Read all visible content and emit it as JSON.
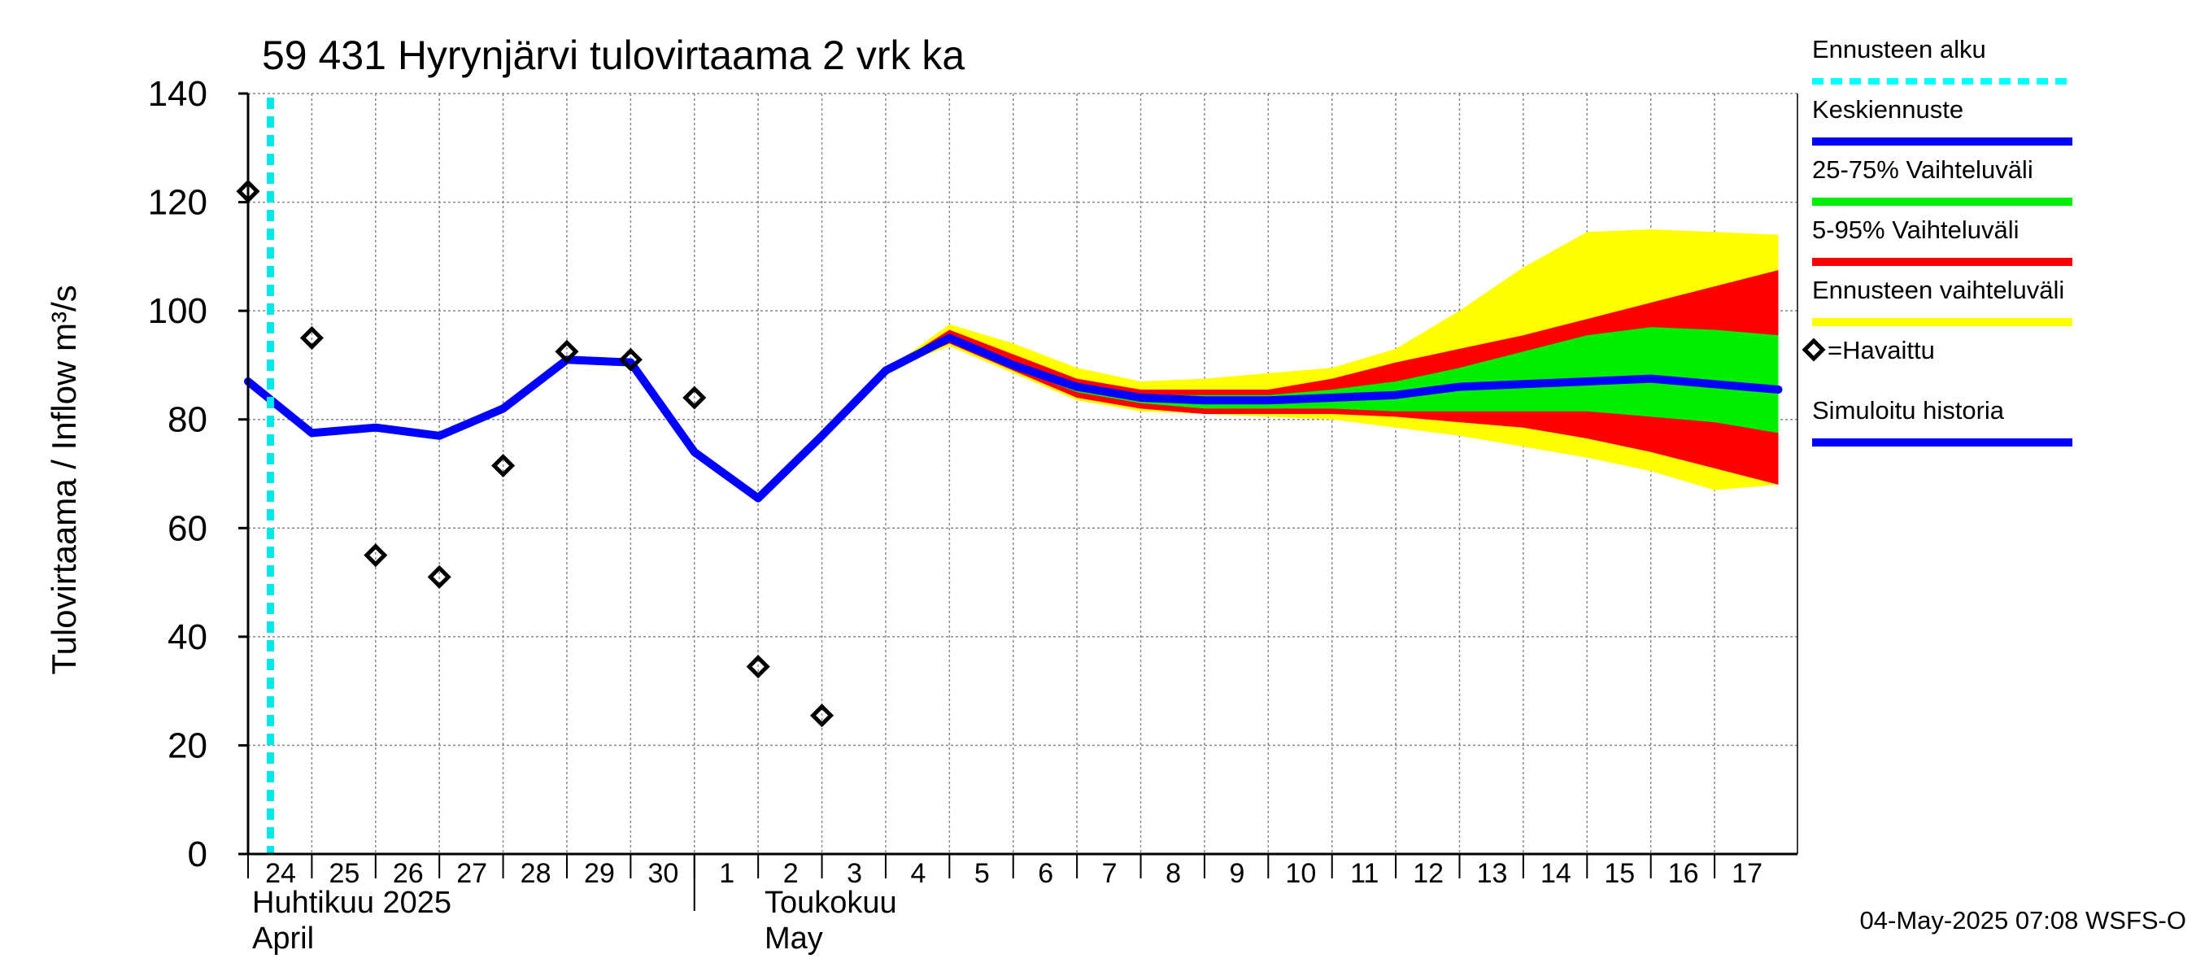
{
  "chart_data": {
    "type": "area",
    "title": "59 431 Hyrynjärvi tulovirtaama 2 vrk ka",
    "ylabel": "Tulovirtaama / Inflow    m³/s",
    "ylim": [
      0,
      140
    ],
    "y_ticks": [
      0,
      20,
      40,
      60,
      80,
      100,
      120,
      140
    ],
    "grid": true,
    "x_day_labels": [
      "24",
      "25",
      "26",
      "27",
      "28",
      "29",
      "30",
      "1",
      "2",
      "3",
      "4",
      "5",
      "6",
      "7",
      "8",
      "9",
      "10",
      "11",
      "12",
      "13",
      "14",
      "15",
      "16",
      "17"
    ],
    "month_labels": {
      "april_fi": "Huhtikuu  2025",
      "april_en": "April",
      "may_fi": "Toukokuu",
      "may_en": "May"
    },
    "forecast_start_x": 23.85,
    "series": [
      {
        "name": "Simuloitu historia",
        "color": "#0000ff",
        "x": [
          23.5,
          24.5,
          25.5,
          26.5,
          27.5,
          28.5,
          29.5,
          30.5,
          31.5,
          32.5,
          33.5
        ],
        "y": [
          87,
          77.5,
          78.5,
          77,
          82,
          91,
          90.5,
          74,
          65.5,
          77,
          89
        ]
      },
      {
        "name": "Keskiennuste",
        "color": "#0000ff",
        "x": [
          33.5,
          34.5,
          35.5,
          36.5,
          37.5,
          38.5,
          39.5,
          40.5,
          41.5,
          42.5,
          43.5,
          44.5,
          45.5,
          46.5,
          47.5
        ],
        "y": [
          89,
          95,
          90,
          86,
          84,
          83.5,
          83.5,
          84,
          84.5,
          86,
          86.5,
          87,
          87.5,
          86.5,
          85.5
        ]
      },
      {
        "name": "=Havaittu",
        "color": "#000000",
        "x": [
          23.5,
          24.5,
          25.5,
          26.5,
          27.5,
          28.5,
          29.5,
          30.5,
          31.5,
          32.5
        ],
        "y": [
          122,
          95,
          55,
          51,
          71.5,
          92.5,
          91,
          84,
          34.5,
          25.5
        ]
      }
    ],
    "bands": [
      {
        "name": "Ennusteen vaihteluväli",
        "color": "#ffff00",
        "x": [
          33.5,
          34.5,
          35.5,
          36.5,
          37.5,
          38.5,
          39.5,
          40.5,
          41.5,
          42.5,
          43.5,
          44.5,
          45.5,
          46.5,
          47.5
        ],
        "low": [
          89,
          93.5,
          88.5,
          83.5,
          81.5,
          81,
          80.5,
          80,
          78.5,
          77,
          75,
          73,
          70.5,
          67,
          68
        ],
        "high": [
          89,
          97.5,
          94,
          89.5,
          87,
          87.5,
          88.5,
          89.5,
          93,
          100,
          108,
          114.5,
          115,
          114.5,
          114
        ]
      },
      {
        "name": "5-95% Vaihteluväli",
        "color": "#ff0000",
        "x": [
          33.5,
          34.5,
          35.5,
          36.5,
          37.5,
          38.5,
          39.5,
          40.5,
          41.5,
          42.5,
          43.5,
          44.5,
          45.5,
          46.5,
          47.5
        ],
        "low": [
          89,
          94,
          89,
          84,
          82,
          81,
          81,
          81,
          80.5,
          79.5,
          78.5,
          76.5,
          74,
          71,
          68
        ],
        "high": [
          89,
          96.5,
          92,
          87.5,
          85.5,
          85.5,
          85.5,
          87.5,
          90.5,
          93,
          95.5,
          98.5,
          101.5,
          104.5,
          107.5
        ]
      },
      {
        "name": "25-75% Vaihteluväli",
        "color": "#00ee00",
        "x": [
          33.5,
          34.5,
          35.5,
          36.5,
          37.5,
          38.5,
          39.5,
          40.5,
          41.5,
          42.5,
          43.5,
          44.5,
          45.5,
          46.5,
          47.5
        ],
        "low": [
          89,
          94.5,
          89.5,
          85,
          83,
          82,
          82,
          82,
          81.5,
          81.5,
          81.5,
          81.5,
          80.5,
          79.5,
          77.5
        ],
        "high": [
          89,
          95.5,
          90.5,
          86.5,
          84.5,
          84.5,
          84.5,
          85.5,
          87,
          89.5,
          92.5,
          95.5,
          97,
          96.5,
          95.5
        ]
      }
    ],
    "legend": [
      {
        "label": "Ennusteen alku",
        "color": "#00ffff",
        "style": "dashed"
      },
      {
        "label": "Keskiennuste",
        "color": "#0000ff",
        "style": "solid"
      },
      {
        "label": "25-75% Vaihteluväli",
        "color": "#00ee00",
        "style": "solid"
      },
      {
        "label": "5-95% Vaihteluväli",
        "color": "#ff0000",
        "style": "solid"
      },
      {
        "label": "Ennusteen vaihteluväli",
        "color": "#ffff00",
        "style": "solid"
      },
      {
        "label": "=Havaittu",
        "color": "#000000",
        "style": "marker"
      },
      {
        "label": "Simuloitu historia",
        "color": "#0000ff",
        "style": "solid"
      }
    ],
    "legend_placement": "right",
    "timestamp": "04-May-2025 07:08 WSFS-O"
  }
}
